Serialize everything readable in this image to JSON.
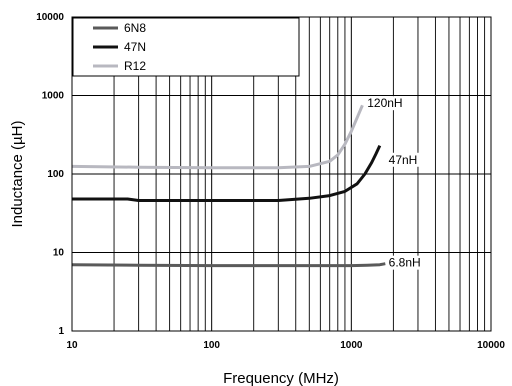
{
  "chart_data": {
    "type": "line",
    "xlabel": "Frequency (MHz)",
    "ylabel": "Inductance (µH)",
    "x_scale": "log",
    "y_scale": "log",
    "xlim": [
      10,
      10000
    ],
    "ylim": [
      1,
      10000
    ],
    "x_ticks": [
      "10",
      "100",
      "1000",
      "10000"
    ],
    "y_ticks": [
      "1",
      "10",
      "100",
      "1000",
      "10000"
    ],
    "grid": true,
    "legend_position": "top-left",
    "series": [
      {
        "name": "6N8",
        "color": "#5a5a5a",
        "x": [
          10,
          30,
          100,
          300,
          700,
          1000,
          1300,
          1600,
          1750
        ],
        "y": [
          7,
          6.9,
          6.8,
          6.8,
          6.8,
          6.8,
          6.9,
          7.0,
          7.2
        ]
      },
      {
        "name": "47N",
        "color": "#111111",
        "x": [
          10,
          25,
          30,
          100,
          300,
          500,
          700,
          900,
          1100,
          1250,
          1400,
          1500,
          1600
        ],
        "y": [
          48,
          48,
          46,
          46,
          46,
          49,
          53,
          60,
          75,
          100,
          140,
          180,
          230
        ]
      },
      {
        "name": "R12",
        "color": "#b8b8c0",
        "x": [
          10,
          30,
          100,
          300,
          500,
          700,
          800,
          900,
          1000,
          1100,
          1200
        ],
        "y": [
          125,
          122,
          120,
          120,
          125,
          145,
          175,
          240,
          350,
          520,
          750
        ]
      }
    ],
    "annotations": [
      {
        "text": "120nH",
        "x": 1300,
        "y": 710
      },
      {
        "text": "47nH",
        "x": 1850,
        "y": 135
      },
      {
        "text": "6.8nH",
        "x": 1850,
        "y": 6.6
      }
    ]
  }
}
